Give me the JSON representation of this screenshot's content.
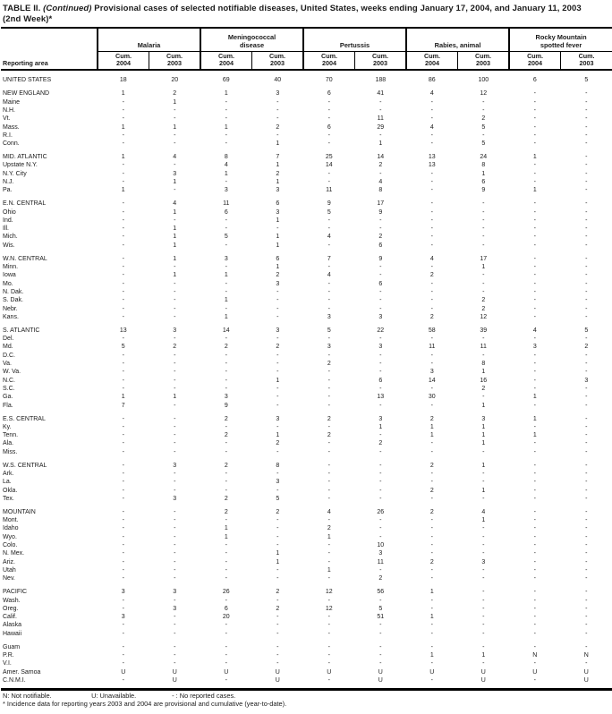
{
  "title": {
    "part1": "TABLE II. ",
    "continued": "(Continued)",
    "part2": " Provisional cases of selected notifiable diseases, United States, weeks ending January 17, 2004, and January 11, 2003",
    "line2": "(2nd Week)*"
  },
  "columns": {
    "stub": "Reporting area",
    "groups": [
      "Malaria",
      "Meningococcal\ndisease",
      "Pertussis",
      "Rabies, animal",
      "Rocky Mountain\nspotted fever"
    ],
    "sub": [
      {
        "top": "Cum.",
        "year": "2004"
      },
      {
        "top": "Cum.",
        "year": "2003"
      },
      {
        "top": "Cum.",
        "year": "2004"
      },
      {
        "top": "Cum.",
        "year": "2003"
      },
      {
        "top": "Cum.",
        "year": "2004"
      },
      {
        "top": "Cum.",
        "year": "2003"
      },
      {
        "top": "Cum.",
        "year": "2004"
      },
      {
        "top": "Cum.",
        "year": "2003"
      },
      {
        "top": "Cum.",
        "year": "2004"
      },
      {
        "top": "Cum.",
        "year": "2003"
      }
    ]
  },
  "rows": [
    {
      "area": "UNITED STATES",
      "gap": true,
      "values": [
        "18",
        "20",
        "69",
        "40",
        "70",
        "188",
        "86",
        "100",
        "6",
        "5"
      ]
    },
    {
      "area": "NEW ENGLAND",
      "gap": true,
      "values": [
        "1",
        "2",
        "1",
        "3",
        "6",
        "41",
        "4",
        "12",
        "-",
        "-"
      ]
    },
    {
      "area": "Maine",
      "gap": false,
      "values": [
        "-",
        "1",
        "-",
        "-",
        "-",
        "-",
        "-",
        "-",
        "-",
        "-"
      ]
    },
    {
      "area": "N.H.",
      "gap": false,
      "values": [
        "-",
        "-",
        "-",
        "-",
        "-",
        "-",
        "-",
        "-",
        "-",
        "-"
      ]
    },
    {
      "area": "Vt.",
      "gap": false,
      "values": [
        "-",
        "-",
        "-",
        "-",
        "-",
        "11",
        "-",
        "2",
        "-",
        "-"
      ]
    },
    {
      "area": "Mass.",
      "gap": false,
      "values": [
        "1",
        "1",
        "1",
        "2",
        "6",
        "29",
        "4",
        "5",
        "-",
        "-"
      ]
    },
    {
      "area": "R.I.",
      "gap": false,
      "values": [
        "-",
        "-",
        "-",
        "-",
        "-",
        "-",
        "-",
        "-",
        "-",
        "-"
      ]
    },
    {
      "area": "Conn.",
      "gap": false,
      "values": [
        "-",
        "-",
        "-",
        "1",
        "-",
        "1",
        "-",
        "5",
        "-",
        "-"
      ]
    },
    {
      "area": "MID. ATLANTIC",
      "gap": true,
      "values": [
        "1",
        "4",
        "8",
        "7",
        "25",
        "14",
        "13",
        "24",
        "1",
        "-"
      ]
    },
    {
      "area": "Upstate N.Y.",
      "gap": false,
      "values": [
        "-",
        "-",
        "4",
        "1",
        "14",
        "2",
        "13",
        "8",
        "-",
        "-"
      ]
    },
    {
      "area": "N.Y. City",
      "gap": false,
      "values": [
        "-",
        "3",
        "1",
        "2",
        "-",
        "-",
        "-",
        "1",
        "-",
        "-"
      ]
    },
    {
      "area": "N.J.",
      "gap": false,
      "values": [
        "-",
        "1",
        "-",
        "1",
        "-",
        "4",
        "-",
        "6",
        "-",
        "-"
      ]
    },
    {
      "area": "Pa.",
      "gap": false,
      "values": [
        "1",
        "-",
        "3",
        "3",
        "11",
        "8",
        "-",
        "9",
        "1",
        "-"
      ]
    },
    {
      "area": "E.N. CENTRAL",
      "gap": true,
      "values": [
        "-",
        "4",
        "11",
        "6",
        "9",
        "17",
        "-",
        "-",
        "-",
        "-"
      ]
    },
    {
      "area": "Ohio",
      "gap": false,
      "values": [
        "-",
        "1",
        "6",
        "3",
        "5",
        "9",
        "-",
        "-",
        "-",
        "-"
      ]
    },
    {
      "area": "Ind.",
      "gap": false,
      "values": [
        "-",
        "-",
        "-",
        "1",
        "-",
        "-",
        "-",
        "-",
        "-",
        "-"
      ]
    },
    {
      "area": "Ill.",
      "gap": false,
      "values": [
        "-",
        "1",
        "-",
        "-",
        "-",
        "-",
        "-",
        "-",
        "-",
        "-"
      ]
    },
    {
      "area": "Mich.",
      "gap": false,
      "values": [
        "-",
        "1",
        "5",
        "1",
        "4",
        "2",
        "-",
        "-",
        "-",
        "-"
      ]
    },
    {
      "area": "Wis.",
      "gap": false,
      "values": [
        "-",
        "1",
        "-",
        "1",
        "-",
        "6",
        "-",
        "-",
        "-",
        "-"
      ]
    },
    {
      "area": "W.N. CENTRAL",
      "gap": true,
      "values": [
        "-",
        "1",
        "3",
        "6",
        "7",
        "9",
        "4",
        "17",
        "-",
        "-"
      ]
    },
    {
      "area": "Minn.",
      "gap": false,
      "values": [
        "-",
        "-",
        "-",
        "1",
        "-",
        "-",
        "-",
        "1",
        "-",
        "-"
      ]
    },
    {
      "area": "Iowa",
      "gap": false,
      "values": [
        "-",
        "1",
        "1",
        "2",
        "4",
        "-",
        "2",
        "-",
        "-",
        "-"
      ]
    },
    {
      "area": "Mo.",
      "gap": false,
      "values": [
        "-",
        "-",
        "-",
        "3",
        "-",
        "6",
        "-",
        "-",
        "-",
        "-"
      ]
    },
    {
      "area": "N. Dak.",
      "gap": false,
      "values": [
        "-",
        "-",
        "-",
        "-",
        "-",
        "-",
        "-",
        "-",
        "-",
        "-"
      ]
    },
    {
      "area": "S. Dak.",
      "gap": false,
      "values": [
        "-",
        "-",
        "1",
        "-",
        "-",
        "-",
        "-",
        "2",
        "-",
        "-"
      ]
    },
    {
      "area": "Nebr.",
      "gap": false,
      "values": [
        "-",
        "-",
        "-",
        "-",
        "-",
        "-",
        "-",
        "2",
        "-",
        "-"
      ]
    },
    {
      "area": "Kans.",
      "gap": false,
      "values": [
        "-",
        "-",
        "1",
        "-",
        "3",
        "3",
        "2",
        "12",
        "-",
        "-"
      ]
    },
    {
      "area": "S. ATLANTIC",
      "gap": true,
      "values": [
        "13",
        "3",
        "14",
        "3",
        "5",
        "22",
        "58",
        "39",
        "4",
        "5"
      ]
    },
    {
      "area": "Del.",
      "gap": false,
      "values": [
        "-",
        "-",
        "-",
        "-",
        "-",
        "-",
        "-",
        "-",
        "-",
        "-"
      ]
    },
    {
      "area": "Md.",
      "gap": false,
      "values": [
        "5",
        "2",
        "2",
        "2",
        "3",
        "3",
        "11",
        "11",
        "3",
        "2"
      ]
    },
    {
      "area": "D.C.",
      "gap": false,
      "values": [
        "-",
        "-",
        "-",
        "-",
        "-",
        "-",
        "-",
        "-",
        "-",
        "-"
      ]
    },
    {
      "area": "Va.",
      "gap": false,
      "values": [
        "-",
        "-",
        "-",
        "-",
        "2",
        "-",
        "-",
        "8",
        "-",
        "-"
      ]
    },
    {
      "area": "W. Va.",
      "gap": false,
      "values": [
        "-",
        "-",
        "-",
        "-",
        "-",
        "-",
        "3",
        "1",
        "-",
        "-"
      ]
    },
    {
      "area": "N.C.",
      "gap": false,
      "values": [
        "-",
        "-",
        "-",
        "1",
        "-",
        "6",
        "14",
        "16",
        "-",
        "3"
      ]
    },
    {
      "area": "S.C.",
      "gap": false,
      "values": [
        "-",
        "-",
        "-",
        "-",
        "-",
        "-",
        "-",
        "2",
        "-",
        "-"
      ]
    },
    {
      "area": "Ga.",
      "gap": false,
      "values": [
        "1",
        "1",
        "3",
        "-",
        "-",
        "13",
        "30",
        "-",
        "1",
        "-"
      ]
    },
    {
      "area": "Fla.",
      "gap": false,
      "values": [
        "7",
        "-",
        "9",
        "-",
        "-",
        "-",
        "-",
        "1",
        "-",
        "-"
      ]
    },
    {
      "area": "E.S. CENTRAL",
      "gap": true,
      "values": [
        "-",
        "-",
        "2",
        "3",
        "2",
        "3",
        "2",
        "3",
        "1",
        "-"
      ]
    },
    {
      "area": "Ky.",
      "gap": false,
      "values": [
        "-",
        "-",
        "-",
        "-",
        "-",
        "1",
        "1",
        "1",
        "-",
        "-"
      ]
    },
    {
      "area": "Tenn.",
      "gap": false,
      "values": [
        "-",
        "-",
        "2",
        "1",
        "2",
        "-",
        "1",
        "1",
        "1",
        "-"
      ]
    },
    {
      "area": "Ala.",
      "gap": false,
      "values": [
        "-",
        "-",
        "-",
        "2",
        "-",
        "2",
        "-",
        "1",
        "-",
        "-"
      ]
    },
    {
      "area": "Miss.",
      "gap": false,
      "values": [
        "-",
        "-",
        "-",
        "-",
        "-",
        "-",
        "-",
        "-",
        "-",
        "-"
      ]
    },
    {
      "area": "W.S. CENTRAL",
      "gap": true,
      "values": [
        "-",
        "3",
        "2",
        "8",
        "-",
        "-",
        "2",
        "1",
        "-",
        "-"
      ]
    },
    {
      "area": "Ark.",
      "gap": false,
      "values": [
        "-",
        "-",
        "-",
        "-",
        "-",
        "-",
        "-",
        "-",
        "-",
        "-"
      ]
    },
    {
      "area": "La.",
      "gap": false,
      "values": [
        "-",
        "-",
        "-",
        "3",
        "-",
        "-",
        "-",
        "-",
        "-",
        "-"
      ]
    },
    {
      "area": "Okla.",
      "gap": false,
      "values": [
        "-",
        "-",
        "-",
        "-",
        "-",
        "-",
        "2",
        "1",
        "-",
        "-"
      ]
    },
    {
      "area": "Tex.",
      "gap": false,
      "values": [
        "-",
        "3",
        "2",
        "5",
        "-",
        "-",
        "-",
        "-",
        "-",
        "-"
      ]
    },
    {
      "area": "MOUNTAIN",
      "gap": true,
      "values": [
        "-",
        "-",
        "2",
        "2",
        "4",
        "26",
        "2",
        "4",
        "-",
        "-"
      ]
    },
    {
      "area": "Mont.",
      "gap": false,
      "values": [
        "-",
        "-",
        "-",
        "-",
        "-",
        "-",
        "-",
        "1",
        "-",
        "-"
      ]
    },
    {
      "area": "Idaho",
      "gap": false,
      "values": [
        "-",
        "-",
        "1",
        "-",
        "2",
        "-",
        "-",
        "-",
        "-",
        "-"
      ]
    },
    {
      "area": "Wyo.",
      "gap": false,
      "values": [
        "-",
        "-",
        "1",
        "-",
        "1",
        "-",
        "-",
        "-",
        "-",
        "-"
      ]
    },
    {
      "area": "Colo.",
      "gap": false,
      "values": [
        "-",
        "-",
        "-",
        "-",
        "-",
        "10",
        "-",
        "-",
        "-",
        "-"
      ]
    },
    {
      "area": "N. Mex.",
      "gap": false,
      "values": [
        "-",
        "-",
        "-",
        "1",
        "-",
        "3",
        "-",
        "-",
        "-",
        "-"
      ]
    },
    {
      "area": "Ariz.",
      "gap": false,
      "values": [
        "-",
        "-",
        "-",
        "1",
        "-",
        "11",
        "2",
        "3",
        "-",
        "-"
      ]
    },
    {
      "area": "Utah",
      "gap": false,
      "values": [
        "-",
        "-",
        "-",
        "-",
        "1",
        "-",
        "-",
        "-",
        "-",
        "-"
      ]
    },
    {
      "area": "Nev.",
      "gap": false,
      "values": [
        "-",
        "-",
        "-",
        "-",
        "-",
        "2",
        "-",
        "-",
        "-",
        "-"
      ]
    },
    {
      "area": "PACIFIC",
      "gap": true,
      "values": [
        "3",
        "3",
        "26",
        "2",
        "12",
        "56",
        "1",
        "-",
        "-",
        "-"
      ]
    },
    {
      "area": "Wash.",
      "gap": false,
      "values": [
        "-",
        "-",
        "-",
        "-",
        "-",
        "-",
        "-",
        "-",
        "-",
        "-"
      ]
    },
    {
      "area": "Oreg.",
      "gap": false,
      "values": [
        "-",
        "3",
        "6",
        "2",
        "12",
        "5",
        "-",
        "-",
        "-",
        "-"
      ]
    },
    {
      "area": "Calif.",
      "gap": false,
      "values": [
        "3",
        "-",
        "20",
        "-",
        "-",
        "51",
        "1",
        "-",
        "-",
        "-"
      ]
    },
    {
      "area": "Alaska",
      "gap": false,
      "values": [
        "-",
        "-",
        "-",
        "-",
        "-",
        "-",
        "-",
        "-",
        "-",
        "-"
      ]
    },
    {
      "area": "Hawaii",
      "gap": false,
      "values": [
        "-",
        "-",
        "-",
        "-",
        "-",
        "-",
        "-",
        "-",
        "-",
        "-"
      ]
    },
    {
      "area": "Guam",
      "gap": true,
      "values": [
        "-",
        "-",
        "-",
        "-",
        "-",
        "-",
        "-",
        "-",
        "-",
        "-"
      ]
    },
    {
      "area": "P.R.",
      "gap": false,
      "values": [
        "-",
        "-",
        "-",
        "-",
        "-",
        "-",
        "1",
        "1",
        "N",
        "N"
      ]
    },
    {
      "area": "V.I.",
      "gap": false,
      "values": [
        "-",
        "-",
        "-",
        "-",
        "-",
        "-",
        "-",
        "-",
        "-",
        "-"
      ]
    },
    {
      "area": "Amer. Samoa",
      "gap": false,
      "values": [
        "U",
        "U",
        "U",
        "U",
        "U",
        "U",
        "U",
        "U",
        "U",
        "U"
      ]
    },
    {
      "area": "C.N.M.I.",
      "gap": false,
      "values": [
        "-",
        "U",
        "-",
        "U",
        "-",
        "U",
        "-",
        "U",
        "-",
        "U"
      ]
    }
  ],
  "footnotes": {
    "legend": [
      "N: Not notifiable.",
      "U: Unavailable.",
      "- : No reported cases."
    ],
    "incidence": "* Incidence data for reporting years 2003 and 2004 are provisional and cumulative (year-to-date)."
  }
}
